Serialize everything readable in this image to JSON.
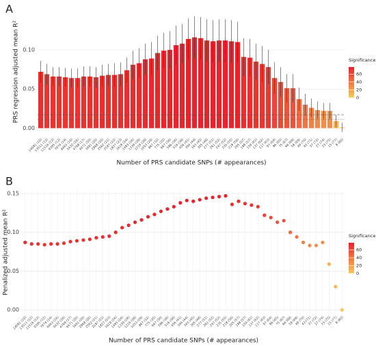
{
  "chart_data": [
    {
      "type": "bar",
      "panel": "A",
      "ylabel": "PRS regression adjusted mean R²",
      "xlabel": "Number of PRS candidate SNPs (# appearances)",
      "categories": [
        "14081 (10)",
        "13511 (12)",
        "11516 (12)",
        "9395 (12)",
        "7974 (14)",
        "6463 (16)",
        "5432 (16)",
        "4768 (17)",
        "4471 (20)",
        "3491 (20)",
        "2868 (20)",
        "2562 (21)",
        "2187 (22)",
        "1827 (23)",
        "1618 (24)",
        "1483 (26)",
        "1339 (28)",
        "1219 (28)",
        "1053 (29)",
        "867 (32)",
        "775 (35)",
        "667 (36)",
        "586 (36)",
        "516 (38)",
        "456 (41)",
        "394 (44)",
        "343 (45)",
        "305 (48)",
        "277 (51)",
        "261 (52)",
        "247 (52)",
        "235 (55)",
        "218 (56)",
        "205 (57)",
        "188 (57)",
        "159 (61)",
        "137 (62)",
        "117 (63)",
        "97 (64)",
        "86 (65)",
        "75 (67)",
        "66 (68)",
        "58 (69)",
        "49 (70)",
        "43 (71)",
        "37 (72)",
        "27 (74)",
        "23 (75)",
        "15 (77)",
        "8 (80)"
      ],
      "values": [
        0.072,
        0.069,
        0.066,
        0.066,
        0.065,
        0.064,
        0.064,
        0.066,
        0.066,
        0.065,
        0.067,
        0.068,
        0.068,
        0.069,
        0.074,
        0.081,
        0.083,
        0.088,
        0.089,
        0.096,
        0.099,
        0.1,
        0.106,
        0.108,
        0.114,
        0.116,
        0.115,
        0.112,
        0.111,
        0.112,
        0.112,
        0.111,
        0.11,
        0.091,
        0.09,
        0.085,
        0.082,
        0.078,
        0.064,
        0.059,
        0.051,
        0.051,
        0.037,
        0.03,
        0.026,
        0.023,
        0.022,
        0.022,
        0.009,
        0.001
      ],
      "errors": [
        0.014,
        0.013,
        0.012,
        0.012,
        0.012,
        0.012,
        0.012,
        0.013,
        0.013,
        0.013,
        0.014,
        0.014,
        0.015,
        0.015,
        0.016,
        0.018,
        0.019,
        0.02,
        0.021,
        0.022,
        0.023,
        0.024,
        0.025,
        0.025,
        0.026,
        0.027,
        0.027,
        0.027,
        0.027,
        0.027,
        0.027,
        0.027,
        0.026,
        0.024,
        0.024,
        0.023,
        0.023,
        0.022,
        0.02,
        0.019,
        0.018,
        0.018,
        0.015,
        0.014,
        0.012,
        0.011,
        0.01,
        0.01,
        0.008,
        0.006
      ],
      "significance": [
        72,
        70,
        70,
        70,
        70,
        70,
        70,
        71,
        71,
        71,
        72,
        72,
        72,
        72,
        73,
        74,
        74,
        75,
        75,
        76,
        76,
        76,
        77,
        77,
        78,
        78,
        78,
        78,
        78,
        78,
        78,
        78,
        78,
        72,
        72,
        70,
        69,
        68,
        62,
        60,
        55,
        55,
        45,
        40,
        35,
        30,
        28,
        28,
        12,
        2
      ],
      "hlines": [
        0.017,
        0.011
      ],
      "ylim": [
        -0.011,
        0.155
      ],
      "yticks": [
        {
          "value": 0,
          "label": "0.00"
        },
        {
          "value": 0.05,
          "label": "0.05"
        },
        {
          "value": 0.1,
          "label": "0.10"
        }
      ],
      "grid": true,
      "colorbar": {
        "title": "Significance",
        "range": [
          0,
          78
        ],
        "ticks": [
          0,
          20,
          40,
          60
        ],
        "colors": [
          "#f4cb60",
          "#e8232b"
        ]
      }
    },
    {
      "type": "scatter",
      "panel": "B",
      "ylabel": "Penalized adjusted mean R²",
      "xlabel": "Number of PRS candidate SNPs (# appearances)",
      "categories": [
        "14081 (10)",
        "13511 (12)",
        "11516 (12)",
        "9395 (12)",
        "7974 (14)",
        "6463 (16)",
        "5432 (16)",
        "4768 (17)",
        "4471 (20)",
        "3491 (20)",
        "2868 (20)",
        "2562 (21)",
        "2187 (22)",
        "1827 (23)",
        "1618 (24)",
        "1483 (26)",
        "1339 (28)",
        "1219 (28)",
        "1053 (29)",
        "867 (32)",
        "775 (35)",
        "667 (36)",
        "586 (36)",
        "516 (38)",
        "456 (41)",
        "394 (44)",
        "343 (45)",
        "305 (48)",
        "277 (51)",
        "261 (52)",
        "247 (52)",
        "235 (55)",
        "218 (56)",
        "205 (57)",
        "188 (57)",
        "159 (61)",
        "137 (62)",
        "117 (63)",
        "97 (64)",
        "86 (65)",
        "75 (67)",
        "66 (68)",
        "58 (69)",
        "49 (70)",
        "43 (71)",
        "37 (72)",
        "27 (74)",
        "23 (75)",
        "15 (77)",
        "8 (80)"
      ],
      "values": [
        0.087,
        0.085,
        0.085,
        0.084,
        0.085,
        0.085,
        0.086,
        0.088,
        0.089,
        0.09,
        0.091,
        0.093,
        0.094,
        0.095,
        0.1,
        0.106,
        0.109,
        0.113,
        0.116,
        0.12,
        0.123,
        0.127,
        0.13,
        0.133,
        0.138,
        0.141,
        0.14,
        0.142,
        0.144,
        0.145,
        0.146,
        0.147,
        0.136,
        0.14,
        0.137,
        0.135,
        0.133,
        0.122,
        0.119,
        0.113,
        0.115,
        0.1,
        0.094,
        0.087,
        0.083,
        0.083,
        0.087,
        0.059,
        0.03,
        0.0
      ],
      "significance": [
        72,
        70,
        70,
        70,
        70,
        70,
        70,
        71,
        71,
        71,
        72,
        72,
        72,
        72,
        73,
        74,
        74,
        75,
        75,
        76,
        76,
        76,
        77,
        77,
        78,
        78,
        78,
        78,
        78,
        78,
        78,
        78,
        72,
        72,
        70,
        69,
        68,
        62,
        60,
        55,
        55,
        45,
        40,
        35,
        30,
        28,
        28,
        12,
        8,
        2
      ],
      "ylim": [
        -0.006,
        0.1544
      ],
      "yticks": [
        {
          "value": 0,
          "label": "0.00"
        },
        {
          "value": 0.05,
          "label": "0.05"
        },
        {
          "value": 0.1,
          "label": "0.10"
        },
        {
          "value": 0.15,
          "label": "0.15"
        }
      ],
      "grid": true,
      "colorbar": {
        "title": "Significance",
        "range": [
          0,
          78
        ],
        "ticks": [
          0,
          20,
          40,
          60
        ],
        "colors": [
          "#f4cb60",
          "#e8232b"
        ]
      }
    }
  ]
}
